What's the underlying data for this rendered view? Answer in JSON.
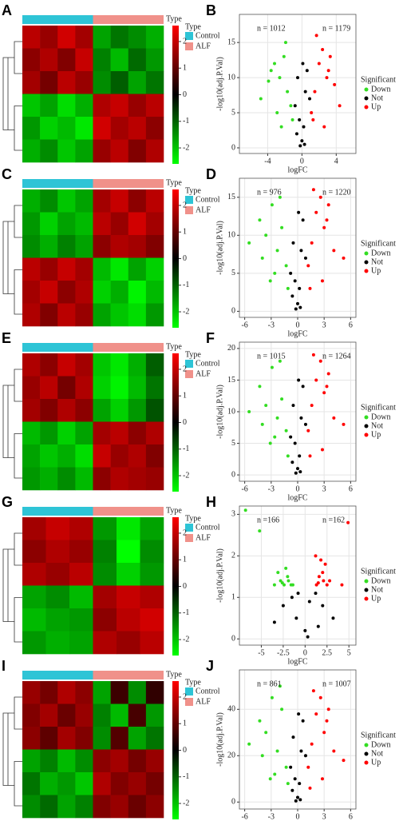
{
  "chart_data": [
    {
      "type": "heatmap",
      "label": "A",
      "annotation_label": "Type",
      "legend_title": "Type",
      "zlim": [
        -2.6,
        2.6
      ],
      "zticks": [
        2,
        1,
        0,
        -1,
        -2
      ],
      "series": [
        {
          "name": "Control",
          "color": "#2ec4d6",
          "values": [
            [
              1.4,
              1.1,
              1.6,
              1.2
            ],
            [
              1.0,
              1.3,
              0.9,
              1.5
            ],
            [
              1.2,
              0.8,
              1.4,
              1.1
            ],
            [
              -1.5,
              -1.2,
              -1.7,
              -1.3
            ],
            [
              -1.1,
              -1.6,
              -1.4,
              -1.8
            ],
            [
              -1.3,
              -1.0,
              -1.5,
              -1.2
            ]
          ]
        },
        {
          "name": "ALF",
          "color": "#f0918a",
          "values": [
            [
              -1.2,
              -0.8,
              -1.0,
              -1.3
            ],
            [
              -0.9,
              -1.4,
              -0.7,
              -1.1
            ],
            [
              -1.0,
              -0.6,
              -1.2,
              -0.8
            ],
            [
              1.3,
              1.5,
              1.1,
              1.4
            ],
            [
              1.6,
              1.2,
              1.4,
              1.0
            ],
            [
              1.1,
              1.4,
              0.9,
              1.3
            ]
          ]
        }
      ]
    },
    {
      "type": "scatter",
      "label": "B",
      "xlabel": "logFC",
      "ylabel": "-log10(adj.P.Val)",
      "legend_title": "Significant",
      "annotations": [
        "n = 1012",
        "n = 1179"
      ],
      "xlim": [
        -7.3,
        6.3
      ],
      "xticks": [
        -4,
        0,
        4
      ],
      "ylim": [
        -0.8,
        19
      ],
      "yticks": [
        0,
        5,
        10,
        15
      ],
      "grid": true,
      "series": [
        {
          "name": "Down",
          "color": "#33dd22",
          "x": [
            -4.8,
            -3.9,
            -3.2,
            -2.6,
            -2.1,
            -1.7,
            -1.3,
            -2.9,
            -3.6,
            -1.9,
            -1.1,
            -2.4
          ],
          "values": [
            7,
            9.5,
            12,
            10,
            13,
            8,
            6,
            5,
            11,
            15,
            4,
            3
          ]
        },
        {
          "name": "Not",
          "color": "#000000",
          "x": [
            -0.8,
            -0.5,
            -0.3,
            0,
            0.2,
            0.4,
            0.6,
            0.9,
            -0.6,
            0.1,
            0.3,
            -0.2
          ],
          "values": [
            6,
            10,
            4,
            1,
            3,
            8,
            11,
            7,
            2,
            12,
            0.5,
            0.3
          ]
        },
        {
          "name": "Up",
          "color": "#ff0000",
          "x": [
            1.1,
            1.5,
            2,
            2.4,
            2.9,
            3.3,
            3.8,
            4.4,
            1.7,
            2.6,
            3.1,
            1.3
          ],
          "values": [
            5,
            8,
            12,
            14,
            10,
            13,
            9,
            6,
            16,
            3,
            11,
            4
          ]
        }
      ]
    },
    {
      "type": "heatmap",
      "label": "C",
      "annotation_label": "Type",
      "legend_title": "Type",
      "zlim": [
        -2.6,
        2.6
      ],
      "zticks": [
        2,
        1,
        0,
        -1,
        -2
      ],
      "series": [
        {
          "name": "Control",
          "color": "#2ec4d6",
          "values": [
            [
              -1.3,
              -1.0,
              -1.5,
              -1.2
            ],
            [
              -1.1,
              -1.6,
              -1.2,
              -1.4
            ],
            [
              -1.0,
              -1.3,
              -0.9,
              -1.2
            ],
            [
              1.4,
              1.1,
              1.5,
              1.2
            ],
            [
              1.2,
              1.5,
              1.0,
              1.3
            ],
            [
              1.3,
              0.9,
              1.4,
              1.1
            ]
          ]
        },
        {
          "name": "ALF",
          "color": "#f0918a",
          "values": [
            [
              1.2,
              1.5,
              1.0,
              1.4
            ],
            [
              1.4,
              1.1,
              1.6,
              1.2
            ],
            [
              1.0,
              1.3,
              1.2,
              0.9
            ],
            [
              -1.4,
              -1.8,
              -1.2,
              -1.6
            ],
            [
              -1.6,
              -1.3,
              -1.9,
              -1.4
            ],
            [
              -1.2,
              -1.5,
              -1.7,
              -1.1
            ]
          ]
        }
      ]
    },
    {
      "type": "scatter",
      "label": "D",
      "xlabel": "logFC",
      "ylabel": "-log10(adj.P.Val)",
      "legend_title": "Significant",
      "annotations": [
        "n = 976",
        "n = 1220"
      ],
      "xlim": [
        -6.6,
        6.6
      ],
      "xticks": [
        -6,
        -3,
        0,
        3,
        6
      ],
      "ylim": [
        -0.8,
        17.5
      ],
      "yticks": [
        0,
        5,
        10,
        15
      ],
      "grid": true,
      "series": [
        {
          "name": "Down",
          "color": "#33dd22",
          "x": [
            -5.5,
            -4.3,
            -3.6,
            -2.9,
            -2.3,
            -1.8,
            -1.3,
            -3.1,
            -4.0,
            -2.0,
            -1.1,
            -2.6
          ],
          "values": [
            9,
            12,
            10,
            14,
            8,
            11,
            6,
            4,
            7,
            15,
            3,
            5
          ]
        },
        {
          "name": "Not",
          "color": "#000000",
          "x": [
            -0.8,
            -0.5,
            -0.3,
            0,
            0.2,
            0.4,
            0.6,
            0.9,
            -0.6,
            0.1,
            0.3,
            -0.2
          ],
          "values": [
            5,
            9,
            4,
            1,
            3,
            8,
            12,
            7,
            2,
            13,
            0.5,
            0.3
          ]
        },
        {
          "name": "Up",
          "color": "#ff0000",
          "x": [
            1.2,
            1.6,
            2.1,
            2.6,
            3.0,
            3.5,
            4.1,
            5.2,
            1.8,
            2.8,
            3.3,
            1.4
          ],
          "values": [
            6,
            9,
            13,
            15,
            11,
            14,
            8,
            7,
            16,
            4,
            12,
            3
          ]
        }
      ]
    },
    {
      "type": "heatmap",
      "label": "E",
      "annotation_label": "Type",
      "legend_title": "Type",
      "zlim": [
        -2.6,
        2.6
      ],
      "zticks": [
        2,
        1,
        0,
        -1,
        -2
      ],
      "series": [
        {
          "name": "Control",
          "color": "#2ec4d6",
          "values": [
            [
              1.3,
              1.0,
              1.5,
              1.2
            ],
            [
              1.1,
              1.4,
              0.8,
              1.3
            ],
            [
              1.2,
              0.9,
              1.3,
              1.0
            ],
            [
              -1.4,
              -1.1,
              -1.6,
              -1.2
            ],
            [
              -1.2,
              -1.5,
              -1.3,
              -1.7
            ],
            [
              -1.1,
              -1.3,
              -1.0,
              -1.4
            ]
          ]
        },
        {
          "name": "ALF",
          "color": "#f0918a",
          "values": [
            [
              -1.5,
              -1.8,
              -1.3,
              -0.6
            ],
            [
              -1.6,
              -1.9,
              -1.4,
              -0.8
            ],
            [
              -1.2,
              -1.6,
              -1.1,
              -0.5
            ],
            [
              1.2,
              1.4,
              1.0,
              1.3
            ],
            [
              1.5,
              1.1,
              1.3,
              0.9
            ],
            [
              1.0,
              1.3,
              1.2,
              1.1
            ]
          ]
        }
      ]
    },
    {
      "type": "scatter",
      "label": "F",
      "xlabel": "logFC",
      "ylabel": "-log10(adj.P.Val)",
      "legend_title": "Significant",
      "annotations": [
        "n = 1015",
        "n = 1264"
      ],
      "xlim": [
        -6.6,
        6.6
      ],
      "xticks": [
        -6,
        -3,
        0,
        3,
        6
      ],
      "ylim": [
        -1,
        21
      ],
      "yticks": [
        0,
        5,
        10,
        15,
        20
      ],
      "grid": true,
      "series": [
        {
          "name": "Down",
          "color": "#33dd22",
          "x": [
            -5.5,
            -4.3,
            -3.6,
            -2.9,
            -2.3,
            -1.8,
            -1.3,
            -3.1,
            -4.0,
            -2.0,
            -1.1,
            -2.6
          ],
          "values": [
            10,
            14,
            11,
            17,
            9,
            12,
            7,
            5,
            8,
            18,
            3,
            6
          ]
        },
        {
          "name": "Not",
          "color": "#000000",
          "x": [
            -0.8,
            -0.5,
            -0.3,
            0,
            0.2,
            0.4,
            0.6,
            0.9,
            -0.6,
            0.1,
            0.3,
            -0.2
          ],
          "values": [
            6,
            11,
            5,
            1,
            3,
            9,
            14,
            8,
            2,
            15,
            0.5,
            0.3
          ]
        },
        {
          "name": "Up",
          "color": "#ff0000",
          "x": [
            1.2,
            1.6,
            2.1,
            2.6,
            3.0,
            3.5,
            4.1,
            5.2,
            1.8,
            2.8,
            3.3,
            1.4
          ],
          "values": [
            7,
            11,
            15,
            18,
            13,
            16,
            9,
            8,
            19,
            4,
            14,
            3
          ]
        }
      ]
    },
    {
      "type": "heatmap",
      "label": "G",
      "annotation_label": "Type",
      "legend_title": "Type",
      "zlim": [
        -2.6,
        2.6
      ],
      "zticks": [
        2,
        1,
        0,
        -1,
        -2
      ],
      "series": [
        {
          "name": "Control",
          "color": "#2ec4d6",
          "values": [
            [
              1.2,
              1.5,
              1.3
            ],
            [
              1.0,
              1.3,
              1.1
            ],
            [
              1.3,
              1.1,
              1.4
            ],
            [
              -1.2,
              -1.0,
              -1.4
            ],
            [
              -1.4,
              -1.2,
              -1.1
            ],
            [
              -1.1,
              -1.3,
              -1.2
            ]
          ]
        },
        {
          "name": "ALF",
          "color": "#f0918a",
          "values": [
            [
              -1.1,
              -1.8,
              -1.2
            ],
            [
              -0.9,
              -2.0,
              -1.0
            ],
            [
              -1.0,
              -1.6,
              -1.1
            ],
            [
              1.2,
              1.5,
              1.3
            ],
            [
              1.0,
              1.4,
              1.6
            ],
            [
              1.3,
              1.1,
              1.4
            ]
          ]
        }
      ]
    },
    {
      "type": "scatter",
      "label": "H",
      "xlabel": "logFC",
      "ylabel": "-log10(adj.P.Val)",
      "legend_title": "Significant",
      "annotations": [
        "n =166",
        "n =162"
      ],
      "xlim": [
        -7.5,
        5.8
      ],
      "xticks": [
        -5,
        -2.5,
        0,
        2.5,
        5
      ],
      "ylim": [
        -0.15,
        3.2
      ],
      "yticks": [
        0,
        1,
        2,
        3
      ],
      "grid": true,
      "series": [
        {
          "name": "Down",
          "color": "#33dd22",
          "x": [
            -6.8,
            -5.2,
            -3.1,
            -2.8,
            -2.4,
            -2.0,
            -1.6,
            -3.5,
            -2.2,
            -1.9,
            -2.6,
            -1.4
          ],
          "values": [
            3.1,
            2.6,
            1.6,
            1.4,
            1.3,
            1.5,
            1.3,
            1.3,
            1.7,
            1.4,
            1.35,
            1.3
          ]
        },
        {
          "name": "Not",
          "color": "#000000",
          "x": [
            -3.5,
            -2.5,
            -1.5,
            -0.8,
            0,
            0.5,
            1.2,
            2.0,
            3.2,
            -1.0,
            0.3,
            1.5
          ],
          "values": [
            0.4,
            0.8,
            1.0,
            1.1,
            0.2,
            0.9,
            1.1,
            0.8,
            0.5,
            0.5,
            0.05,
            0.3
          ]
        },
        {
          "name": "Up",
          "color": "#ff0000",
          "x": [
            1.3,
            1.6,
            2.0,
            2.3,
            2.8,
            1.8,
            4.9,
            4.2,
            1.5,
            2.1,
            1.2,
            2.5
          ],
          "values": [
            1.3,
            1.5,
            1.6,
            1.8,
            1.4,
            1.9,
            2.8,
            1.3,
            1.35,
            1.4,
            2.0,
            1.3
          ]
        }
      ]
    },
    {
      "type": "heatmap",
      "label": "I",
      "annotation_label": "Type",
      "legend_title": "Type",
      "zlim": [
        -2.6,
        2.6
      ],
      "zticks": [
        2,
        1,
        0,
        -1,
        -2
      ],
      "series": [
        {
          "name": "Control",
          "color": "#2ec4d6",
          "values": [
            [
              1.1,
              0.8,
              1.3,
              1.0
            ],
            [
              0.9,
              1.2,
              0.7,
              1.1
            ],
            [
              1.0,
              0.6,
              1.2,
              0.9
            ],
            [
              -1.2,
              -0.9,
              -1.4,
              -1.0
            ],
            [
              -0.8,
              -1.3,
              -1.1,
              -1.5
            ],
            [
              -1.0,
              -0.7,
              -1.2,
              -0.9
            ]
          ]
        },
        {
          "name": "ALF",
          "color": "#f0918a",
          "values": [
            [
              -1.2,
              0.3,
              -1.0,
              0.2
            ],
            [
              -0.9,
              -1.4,
              0.4,
              -1.1
            ],
            [
              -1.0,
              0.5,
              -1.2,
              -0.8
            ],
            [
              1.0,
              1.2,
              0.8,
              1.1
            ],
            [
              1.3,
              0.9,
              1.1,
              0.8
            ],
            [
              0.9,
              1.1,
              0.7,
              1.0
            ]
          ]
        }
      ]
    },
    {
      "type": "scatter",
      "label": "J",
      "xlabel": "logFC",
      "ylabel": "-log10(adj.P.Val)",
      "legend_title": "Significant",
      "annotations": [
        "n = 861",
        "n = 1007"
      ],
      "xlim": [
        -6.6,
        6.6
      ],
      "xticks": [
        -6,
        -3,
        0,
        3,
        6
      ],
      "ylim": [
        -3,
        57
      ],
      "yticks": [
        0,
        20,
        40
      ],
      "grid": true,
      "series": [
        {
          "name": "Down",
          "color": "#33dd22",
          "x": [
            -5.5,
            -4.3,
            -3.6,
            -2.9,
            -2.3,
            -1.8,
            -1.3,
            -3.1,
            -4.0,
            -2.0,
            -1.1,
            -2.6
          ],
          "values": [
            25,
            35,
            30,
            45,
            22,
            40,
            15,
            10,
            20,
            50,
            8,
            12
          ]
        },
        {
          "name": "Not",
          "color": "#000000",
          "x": [
            -0.8,
            -0.5,
            -0.3,
            0,
            0.2,
            0.4,
            0.6,
            0.9,
            -0.6,
            0.1,
            0.3,
            -0.2
          ],
          "values": [
            15,
            28,
            10,
            2,
            8,
            22,
            35,
            20,
            5,
            38,
            1,
            0.5
          ]
        },
        {
          "name": "Up",
          "color": "#ff0000",
          "x": [
            1.2,
            1.6,
            2.1,
            2.6,
            3.0,
            3.5,
            4.1,
            5.2,
            1.8,
            2.8,
            3.3,
            1.4
          ],
          "values": [
            15,
            25,
            38,
            45,
            30,
            40,
            22,
            18,
            48,
            10,
            35,
            6
          ]
        }
      ]
    }
  ]
}
